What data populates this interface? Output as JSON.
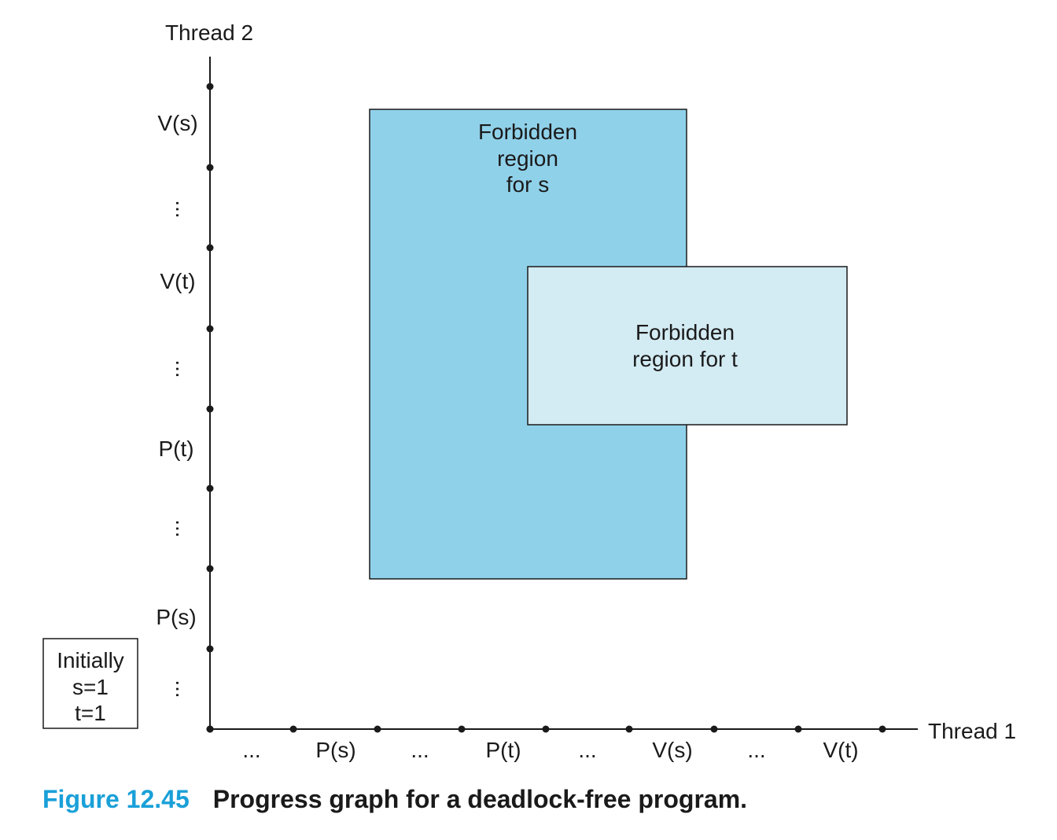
{
  "diagram": {
    "x_axis_label": "Thread 1",
    "y_axis_label": "Thread 2",
    "x_ticks": [
      "...",
      "P(s)",
      "...",
      "P(t)",
      "...",
      "V(s)",
      "...",
      "V(t)"
    ],
    "y_ticks": [
      "...",
      "P(s)",
      "...",
      "P(t)",
      "...",
      "V(t)",
      "...",
      "V(s)"
    ],
    "region_s": {
      "lines": [
        "Forbidden",
        "region",
        "for s"
      ],
      "color": "#90d1ea"
    },
    "region_t": {
      "lines": [
        "Forbidden",
        "region for t"
      ],
      "color": "#d3ebf3"
    },
    "initial_box": {
      "lines": [
        "Initially",
        "s=1",
        "t=1"
      ]
    }
  },
  "caption": {
    "number": "Figure 12.45",
    "title": "Progress graph for a deadlock-free program."
  }
}
